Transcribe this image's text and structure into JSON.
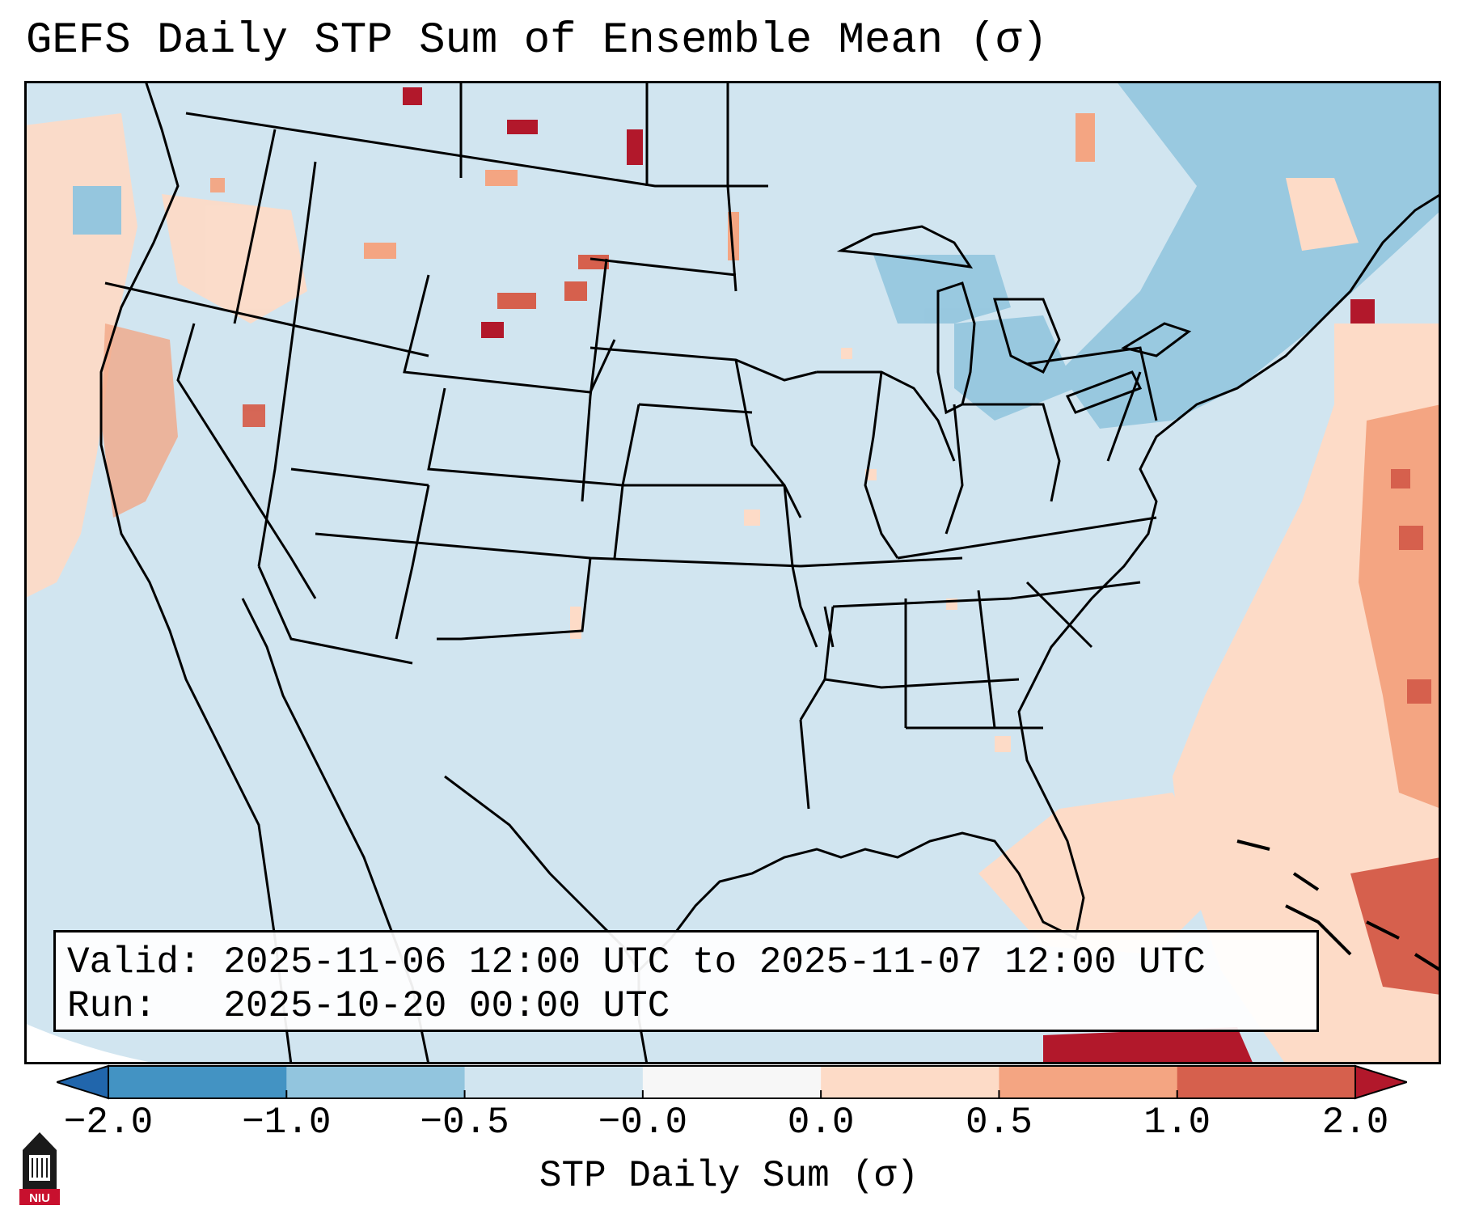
{
  "title": "GEFS Daily STP Sum of Ensemble Mean (σ)",
  "map": {
    "region": "Continental United States",
    "background_color": "#d1e5f0",
    "field_colors": [
      "#fddbc7",
      "#f4a582",
      "#d6604d",
      "#b2182b"
    ],
    "negative_colors": [
      "#92c5de",
      "#4393c3",
      "#2166ac"
    ]
  },
  "info": {
    "valid_label": "Valid:",
    "valid_value": "2025-11-06 12:00 UTC to 2025-11-07 12:00 UTC",
    "run_label": "Run:",
    "run_value": "2025-10-20 00:00 UTC"
  },
  "colorbar": {
    "label": "STP Daily Sum (σ)",
    "ticks": [
      "−2.0",
      "−1.0",
      "−0.5",
      "−0.0",
      "0.0",
      "0.5",
      "1.0",
      "2.0"
    ],
    "colors": [
      "#2166ac",
      "#4393c3",
      "#92c5de",
      "#d1e5f0",
      "#f7f7f7",
      "#fddbc7",
      "#f4a582",
      "#d6604d",
      "#b2182b"
    ]
  },
  "logo": {
    "icon": "niu-logo-icon",
    "text": "NIU"
  }
}
